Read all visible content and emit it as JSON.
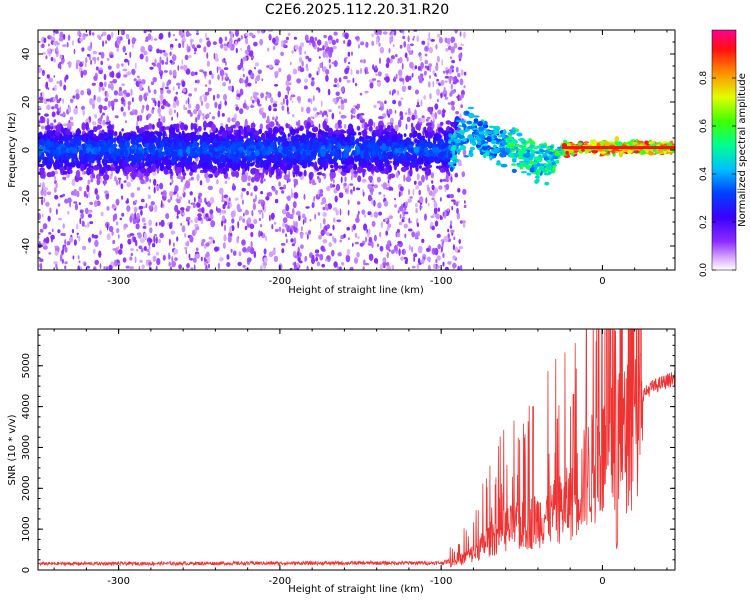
{
  "title": "C2E6.2025.112.20.31.R20",
  "chart_data": [
    {
      "type": "heatmap",
      "xlabel": "Height of straight line (km)",
      "ylabel": "Frequency (Hz)",
      "xlim": [
        -350,
        45
      ],
      "ylim": [
        -50,
        50
      ],
      "xticks": [
        -300,
        -200,
        -100,
        0
      ],
      "yticks": [
        -40,
        -20,
        0,
        20,
        40
      ],
      "xtick_labels": [
        "-300",
        "-200",
        "-100",
        "0"
      ],
      "ytick_labels": [
        "-40",
        "-20",
        "0",
        "20",
        "40"
      ],
      "band_center_hz": [
        {
          "x": -350,
          "f": 0
        },
        {
          "x": -95,
          "f": 0
        },
        {
          "x": -88,
          "f": 7
        },
        {
          "x": -75,
          "f": 6
        },
        {
          "x": -60,
          "f": 1
        },
        {
          "x": -45,
          "f": -2
        },
        {
          "x": -35,
          "f": -5
        },
        {
          "x": -25,
          "f": 0
        },
        {
          "x": -10,
          "f": 1
        },
        {
          "x": 10,
          "f": 1
        },
        {
          "x": 45,
          "f": 1
        }
      ],
      "colorbar": {
        "label": "Normalized spectral amplitude",
        "range": [
          0,
          1
        ],
        "ticks": [
          0.0,
          0.2,
          0.4,
          0.6,
          0.8
        ],
        "tick_labels": [
          "0.0",
          "0.2",
          "0.4",
          "0.6",
          "0.8"
        ],
        "colors": [
          "#ffffff",
          "#b84cff",
          "#5a00ff",
          "#0020ff",
          "#00d0ff",
          "#00ff60",
          "#ffff00",
          "#ff8000",
          "#ff0000",
          "#ff00a0"
        ]
      }
    },
    {
      "type": "line",
      "xlabel": "Height of straight line (km)",
      "ylabel": "SNR (10 * v/v)",
      "xlim": [
        -350,
        45
      ],
      "ylim": [
        0,
        5900
      ],
      "xticks": [
        -300,
        -200,
        -100,
        0
      ],
      "yticks": [
        0,
        1000,
        2000,
        3000,
        4000,
        5000
      ],
      "xtick_labels": [
        "-300",
        "-200",
        "-100",
        "0"
      ],
      "ytick_labels": [
        "0",
        "1000",
        "2000",
        "3000",
        "4000",
        "5000"
      ],
      "series_color": "#ee3333",
      "envelope": [
        {
          "x": -350,
          "y": 150
        },
        {
          "x": -100,
          "y": 170
        },
        {
          "x": -90,
          "y": 250
        },
        {
          "x": -80,
          "y": 500
        },
        {
          "x": -70,
          "y": 900
        },
        {
          "x": -60,
          "y": 1200
        },
        {
          "x": -50,
          "y": 1300
        },
        {
          "x": -40,
          "y": 1500
        },
        {
          "x": -30,
          "y": 1700
        },
        {
          "x": -20,
          "y": 2000
        },
        {
          "x": -10,
          "y": 2800
        },
        {
          "x": 0,
          "y": 3300
        },
        {
          "x": 10,
          "y": 3700
        },
        {
          "x": 20,
          "y": 4200
        },
        {
          "x": 30,
          "y": 4550
        },
        {
          "x": 45,
          "y": 4800
        }
      ],
      "peaks": [
        {
          "x": 8,
          "y": 5850
        },
        {
          "x": -18,
          "y": 4300
        },
        {
          "x": -43,
          "y": 4000
        },
        {
          "x": -28,
          "y": 3700
        }
      ],
      "dip": {
        "x": 9,
        "y": 450
      }
    }
  ]
}
